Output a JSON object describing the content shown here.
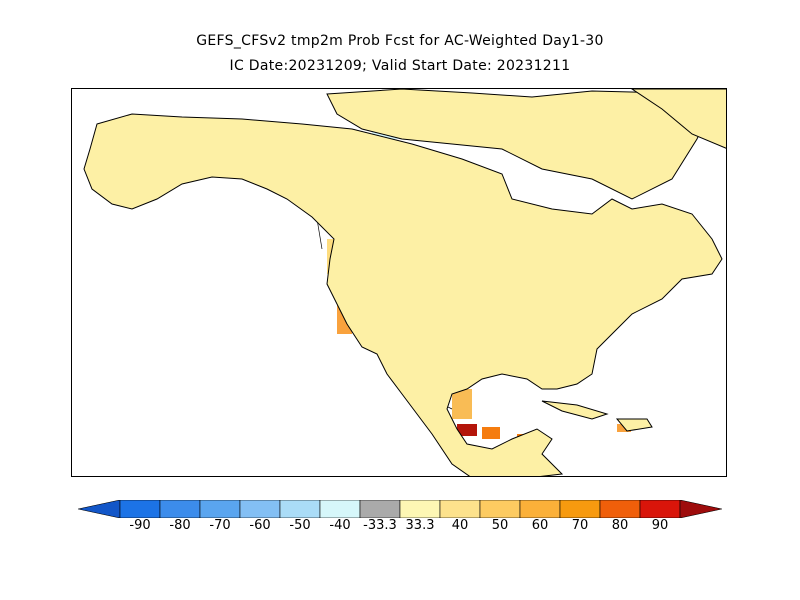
{
  "title": {
    "line1": "GEFS_CFSv2 tmp2m Prob Fcst for AC-Weighted Day1-30",
    "line2": "IC Date:20231209; Valid Start Date: 20231211"
  },
  "map": {
    "region": "North America",
    "colors": {
      "ocean": "#ffffff",
      "base_warm": "#fdf0a5",
      "warm_40": "#fddc7e",
      "warm_50": "#f9bc55",
      "warm_60": "#f9a23d",
      "warm_70": "#f57c0f",
      "warm_90": "#b4150a",
      "cold_light": "#d6f5fa",
      "cold_mid": "#aadff5",
      "cold_dark": "#2244bb",
      "outline": "#000000"
    }
  },
  "colorbar": {
    "segments": [
      {
        "label": "-90",
        "color": "#1c73e6"
      },
      {
        "label": "-80",
        "color": "#3c8ceb"
      },
      {
        "label": "-70",
        "color": "#5aa5ef"
      },
      {
        "label": "-60",
        "color": "#83bff4"
      },
      {
        "label": "-50",
        "color": "#aadcf7"
      },
      {
        "label": "-40",
        "color": "#d6f7fa"
      },
      {
        "label": "-33.3",
        "color": "#aaaaaa"
      },
      {
        "label": "33.3",
        "color": "#fdf7b4"
      },
      {
        "label": "40",
        "color": "#fde28c"
      },
      {
        "label": "50",
        "color": "#fdcb61"
      },
      {
        "label": "60",
        "color": "#fbb039"
      },
      {
        "label": "70",
        "color": "#f79a0f"
      },
      {
        "label": "80",
        "color": "#f05f0a"
      },
      {
        "label": "90",
        "color": "#d9150a"
      }
    ],
    "arrow_left_color": "#1256c8",
    "arrow_right_color": "#9e0c0c"
  }
}
